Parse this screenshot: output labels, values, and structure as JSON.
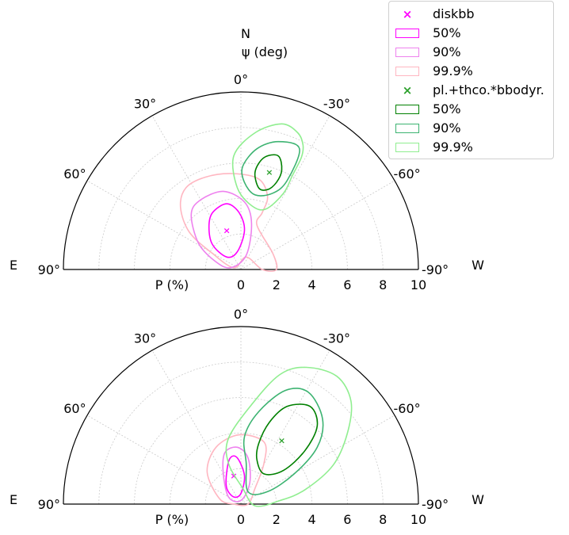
{
  "chart_data": [
    {
      "type": "polar-contour",
      "panel": "top",
      "title_lines": [
        "N",
        "ψ (deg)"
      ],
      "radial_label": "P (%)",
      "rlim": [
        0,
        10
      ],
      "r_ticks": [
        0,
        2,
        4,
        6,
        8,
        10
      ],
      "theta_ticks": [
        "0°",
        "30°",
        "60°",
        "90°",
        "-30°",
        "-60°",
        "-90°"
      ],
      "side_labels": {
        "left": "E",
        "right": "W"
      },
      "grid": true,
      "series": [
        {
          "name": "diskbb",
          "color": "#ff00ff",
          "best_fit": {
            "x": -0.8,
            "y": 2.2
          },
          "contours": {
            "50%": [
              [
                -1.8,
                2.4
              ],
              [
                -1.6,
                3.2
              ],
              [
                -0.8,
                3.7
              ],
              [
                -0.1,
                3.2
              ],
              [
                0.2,
                2.2
              ],
              [
                -0.2,
                1.0
              ],
              [
                -0.8,
                0.7
              ],
              [
                -1.6,
                1.4
              ]
            ],
            "90%": [
              [
                -2.8,
                3.1
              ],
              [
                -2.3,
                3.9
              ],
              [
                -1.0,
                4.4
              ],
              [
                0.2,
                3.8
              ],
              [
                0.6,
                2.6
              ],
              [
                0.3,
                0.8
              ],
              [
                -0.6,
                0.1
              ],
              [
                -1.5,
                0.5
              ],
              [
                -2.4,
                1.5
              ]
            ],
            "99.9%": [
              [
                -3.4,
                3.5
              ],
              [
                -3.1,
                4.6
              ],
              [
                -2.0,
                5.2
              ],
              [
                -0.5,
                5.4
              ],
              [
                1.0,
                5.1
              ],
              [
                1.5,
                4.1
              ],
              [
                1.2,
                3.2
              ],
              [
                0.9,
                2.5
              ],
              [
                1.8,
                0.9
              ],
              [
                2.0,
                0.0
              ],
              [
                1.2,
                0.0
              ],
              [
                0.3,
                0.7
              ],
              [
                -0.4,
                0.1
              ],
              [
                -1.6,
                0.9
              ],
              [
                -2.9,
                2.1
              ]
            ]
          }
        },
        {
          "name": "pl.+thco.*bbodyr.",
          "color": "#2ca02c",
          "best_fit": {
            "x": 1.6,
            "y": 5.5
          },
          "contours": {
            "50%": [
              [
                0.8,
                5.5
              ],
              [
                1.3,
                6.3
              ],
              [
                2.1,
                6.4
              ],
              [
                2.3,
                5.6
              ],
              [
                2.0,
                4.9
              ],
              [
                1.5,
                4.5
              ],
              [
                1.0,
                4.6
              ]
            ],
            "90%": [
              [
                0.1,
                5.8
              ],
              [
                0.9,
                6.8
              ],
              [
                2.1,
                7.2
              ],
              [
                3.3,
                6.8
              ],
              [
                2.6,
                5.0
              ],
              [
                1.8,
                4.3
              ],
              [
                0.8,
                4.2
              ],
              [
                0.2,
                4.9
              ]
            ],
            "99.9%": [
              [
                -0.4,
                6.4
              ],
              [
                0.8,
                7.7
              ],
              [
                2.3,
                8.2
              ],
              [
                3.2,
                7.7
              ],
              [
                3.5,
                7.0
              ],
              [
                3.4,
                6.3
              ],
              [
                2.9,
                5.3
              ],
              [
                2.4,
                4.3
              ],
              [
                1.4,
                3.4
              ],
              [
                0.6,
                3.6
              ],
              [
                -0.2,
                4.6
              ]
            ]
          }
        }
      ]
    },
    {
      "type": "polar-contour",
      "panel": "bottom",
      "radial_label": "P (%)",
      "rlim": [
        0,
        10
      ],
      "r_ticks": [
        0,
        2,
        4,
        6,
        8,
        10
      ],
      "theta_ticks": [
        "0°",
        "30°",
        "60°",
        "90°",
        "-30°",
        "-60°",
        "-90°"
      ],
      "side_labels": {
        "left": "E",
        "right": "W"
      },
      "grid": true,
      "series": [
        {
          "name": "diskbb",
          "color": "#ff00ff",
          "best_fit": {
            "x": -0.4,
            "y": 1.6
          },
          "contours": {
            "50%": [
              [
                -0.8,
                1.8
              ],
              [
                -0.6,
                2.6
              ],
              [
                -0.2,
                2.6
              ],
              [
                0.2,
                1.6
              ],
              [
                0.0,
                0.6
              ],
              [
                -0.4,
                0.4
              ],
              [
                -0.8,
                0.9
              ]
            ],
            "90%": [
              [
                -1.0,
                1.8
              ],
              [
                -0.9,
                2.9
              ],
              [
                -0.2,
                3.2
              ],
              [
                0.4,
                2.6
              ],
              [
                0.5,
                1.2
              ],
              [
                0.0,
                0.2
              ],
              [
                -0.7,
                0.4
              ]
            ],
            "99.9%": [
              [
                -1.9,
                1.8
              ],
              [
                -1.4,
                3.2
              ],
              [
                -0.1,
                3.9
              ],
              [
                1.3,
                3.5
              ],
              [
                1.3,
                2.3
              ],
              [
                0.8,
                0.9
              ],
              [
                0.4,
                0.0
              ],
              [
                -0.4,
                0.0
              ],
              [
                -1.2,
                0.3
              ]
            ]
          }
        },
        {
          "name": "pl.+thco.*bbodyr.",
          "color": "#2ca02c",
          "best_fit": {
            "x": 2.3,
            "y": 3.6
          },
          "contours": {
            "50%": [
              [
                1.0,
                3.4
              ],
              [
                1.6,
                4.6
              ],
              [
                2.6,
                5.5
              ],
              [
                3.9,
                5.5
              ],
              [
                4.3,
                4.4
              ],
              [
                3.6,
                3.0
              ],
              [
                2.4,
                1.9
              ],
              [
                1.3,
                1.7
              ],
              [
                0.9,
                2.5
              ]
            ],
            "90%": [
              [
                0.2,
                3.8
              ],
              [
                1.0,
                5.2
              ],
              [
                2.5,
                6.4
              ],
              [
                3.8,
                6.3
              ],
              [
                4.6,
                4.8
              ],
              [
                4.3,
                3.2
              ],
              [
                3.0,
                1.7
              ],
              [
                1.5,
                0.7
              ],
              [
                0.4,
                0.7
              ],
              [
                0.3,
                2.3
              ]
            ],
            "99.9%": [
              [
                -0.7,
                3.7
              ],
              [
                0.6,
                5.6
              ],
              [
                2.2,
                7.3
              ],
              [
                3.7,
                7.7
              ],
              [
                5.4,
                7.2
              ],
              [
                6.2,
                5.8
              ],
              [
                6.0,
                4.0
              ],
              [
                5.2,
                2.2
              ],
              [
                3.6,
                0.8
              ],
              [
                2.2,
                0.2
              ],
              [
                0.8,
                -0.1
              ],
              [
                0.1,
                0.9
              ],
              [
                -0.7,
                2.3
              ]
            ]
          }
        }
      ]
    }
  ],
  "legend": {
    "entries": [
      {
        "label": "diskbb",
        "kind": "marker",
        "color": "#ff00ff"
      },
      {
        "label": "50%",
        "kind": "patch",
        "color": "#ff00ff"
      },
      {
        "label": "90%",
        "kind": "patch",
        "color": "#ee82ee"
      },
      {
        "label": "99.9%",
        "kind": "patch",
        "color": "#ffb6c1"
      },
      {
        "label": "pl.+thco.*bbodyr.",
        "kind": "marker",
        "color": "#2ca02c"
      },
      {
        "label": "50%",
        "kind": "patch",
        "color": "#008000"
      },
      {
        "label": "90%",
        "kind": "patch",
        "color": "#3cb371"
      },
      {
        "label": "99.9%",
        "kind": "patch",
        "color": "#90ee90"
      }
    ],
    "marker_glyph": "×"
  },
  "contour_colors": {
    "diskbb": {
      "50%": "#ff00ff",
      "90%": "#ee82ee",
      "99.9%": "#ffb6c1"
    },
    "pl.+thco.*bbodyr.": {
      "50%": "#008000",
      "90%": "#3cb371",
      "99.9%": "#90ee90"
    }
  }
}
